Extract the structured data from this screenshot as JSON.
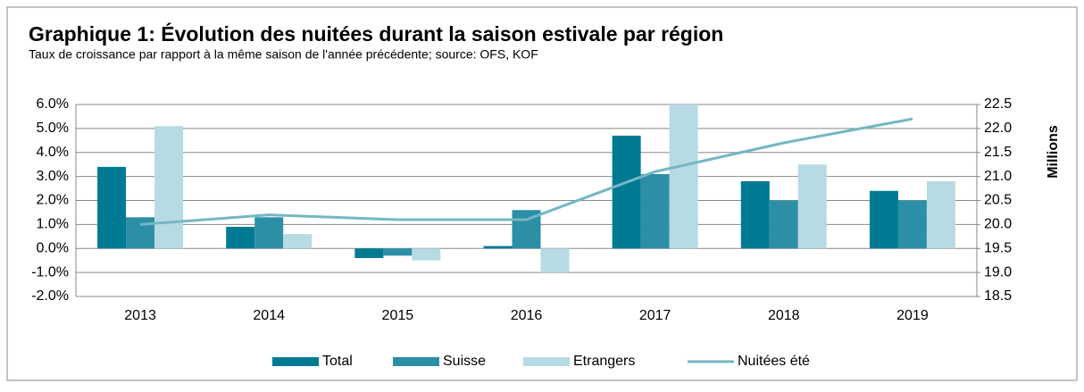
{
  "chart_data": {
    "type": "bar",
    "title": "Graphique 1: Évolution des nuitées durant la saison estivale par région",
    "subtitle": "Taux de croissance par rapport à la même saison de l'année précédente; source: OFS, KOF",
    "y2_label": "Millions",
    "categories": [
      "2013",
      "2014",
      "2015",
      "2016",
      "2017",
      "2018",
      "2019"
    ],
    "series": [
      {
        "name": "Total",
        "color": "#007a93",
        "values": [
          3.4,
          0.9,
          -0.4,
          0.1,
          4.7,
          2.8,
          2.4
        ]
      },
      {
        "name": "Suisse",
        "color": "#2c8fa5",
        "values": [
          1.3,
          1.3,
          -0.3,
          1.6,
          3.1,
          2.0,
          2.0
        ]
      },
      {
        "name": "Etrangers",
        "color": "#b6dbe3",
        "values": [
          5.1,
          0.6,
          -0.5,
          -1.0,
          6.0,
          3.5,
          2.8
        ]
      },
      {
        "name": "Nuitées été",
        "color": "#74b7c4",
        "type": "line",
        "axis": "y2",
        "values": [
          20.0,
          20.2,
          20.1,
          20.1,
          21.1,
          21.7,
          22.2
        ]
      }
    ],
    "ylim": [
      -2,
      6
    ],
    "yticks": [
      {
        "value": -2,
        "label": "-2.0%"
      },
      {
        "value": -1,
        "label": "-1.0%"
      },
      {
        "value": 0,
        "label": "0.0%"
      },
      {
        "value": 1,
        "label": "1.0%"
      },
      {
        "value": 2,
        "label": "2.0%"
      },
      {
        "value": 3,
        "label": "3.0%"
      },
      {
        "value": 4,
        "label": "4.0%"
      },
      {
        "value": 5,
        "label": "5.0%"
      },
      {
        "value": 6,
        "label": "6.0%"
      }
    ],
    "y2lim": [
      18.5,
      22.5
    ],
    "y2ticks": [
      18.5,
      {
        "value": 19,
        "label": "19.0"
      },
      19.5,
      {
        "value": 20,
        "label": "20.0"
      },
      20.5,
      {
        "value": 21,
        "label": "21.0"
      },
      21.5,
      {
        "value": 22,
        "label": "22.0"
      },
      22.5
    ],
    "grid": true,
    "legend": "bottom"
  }
}
